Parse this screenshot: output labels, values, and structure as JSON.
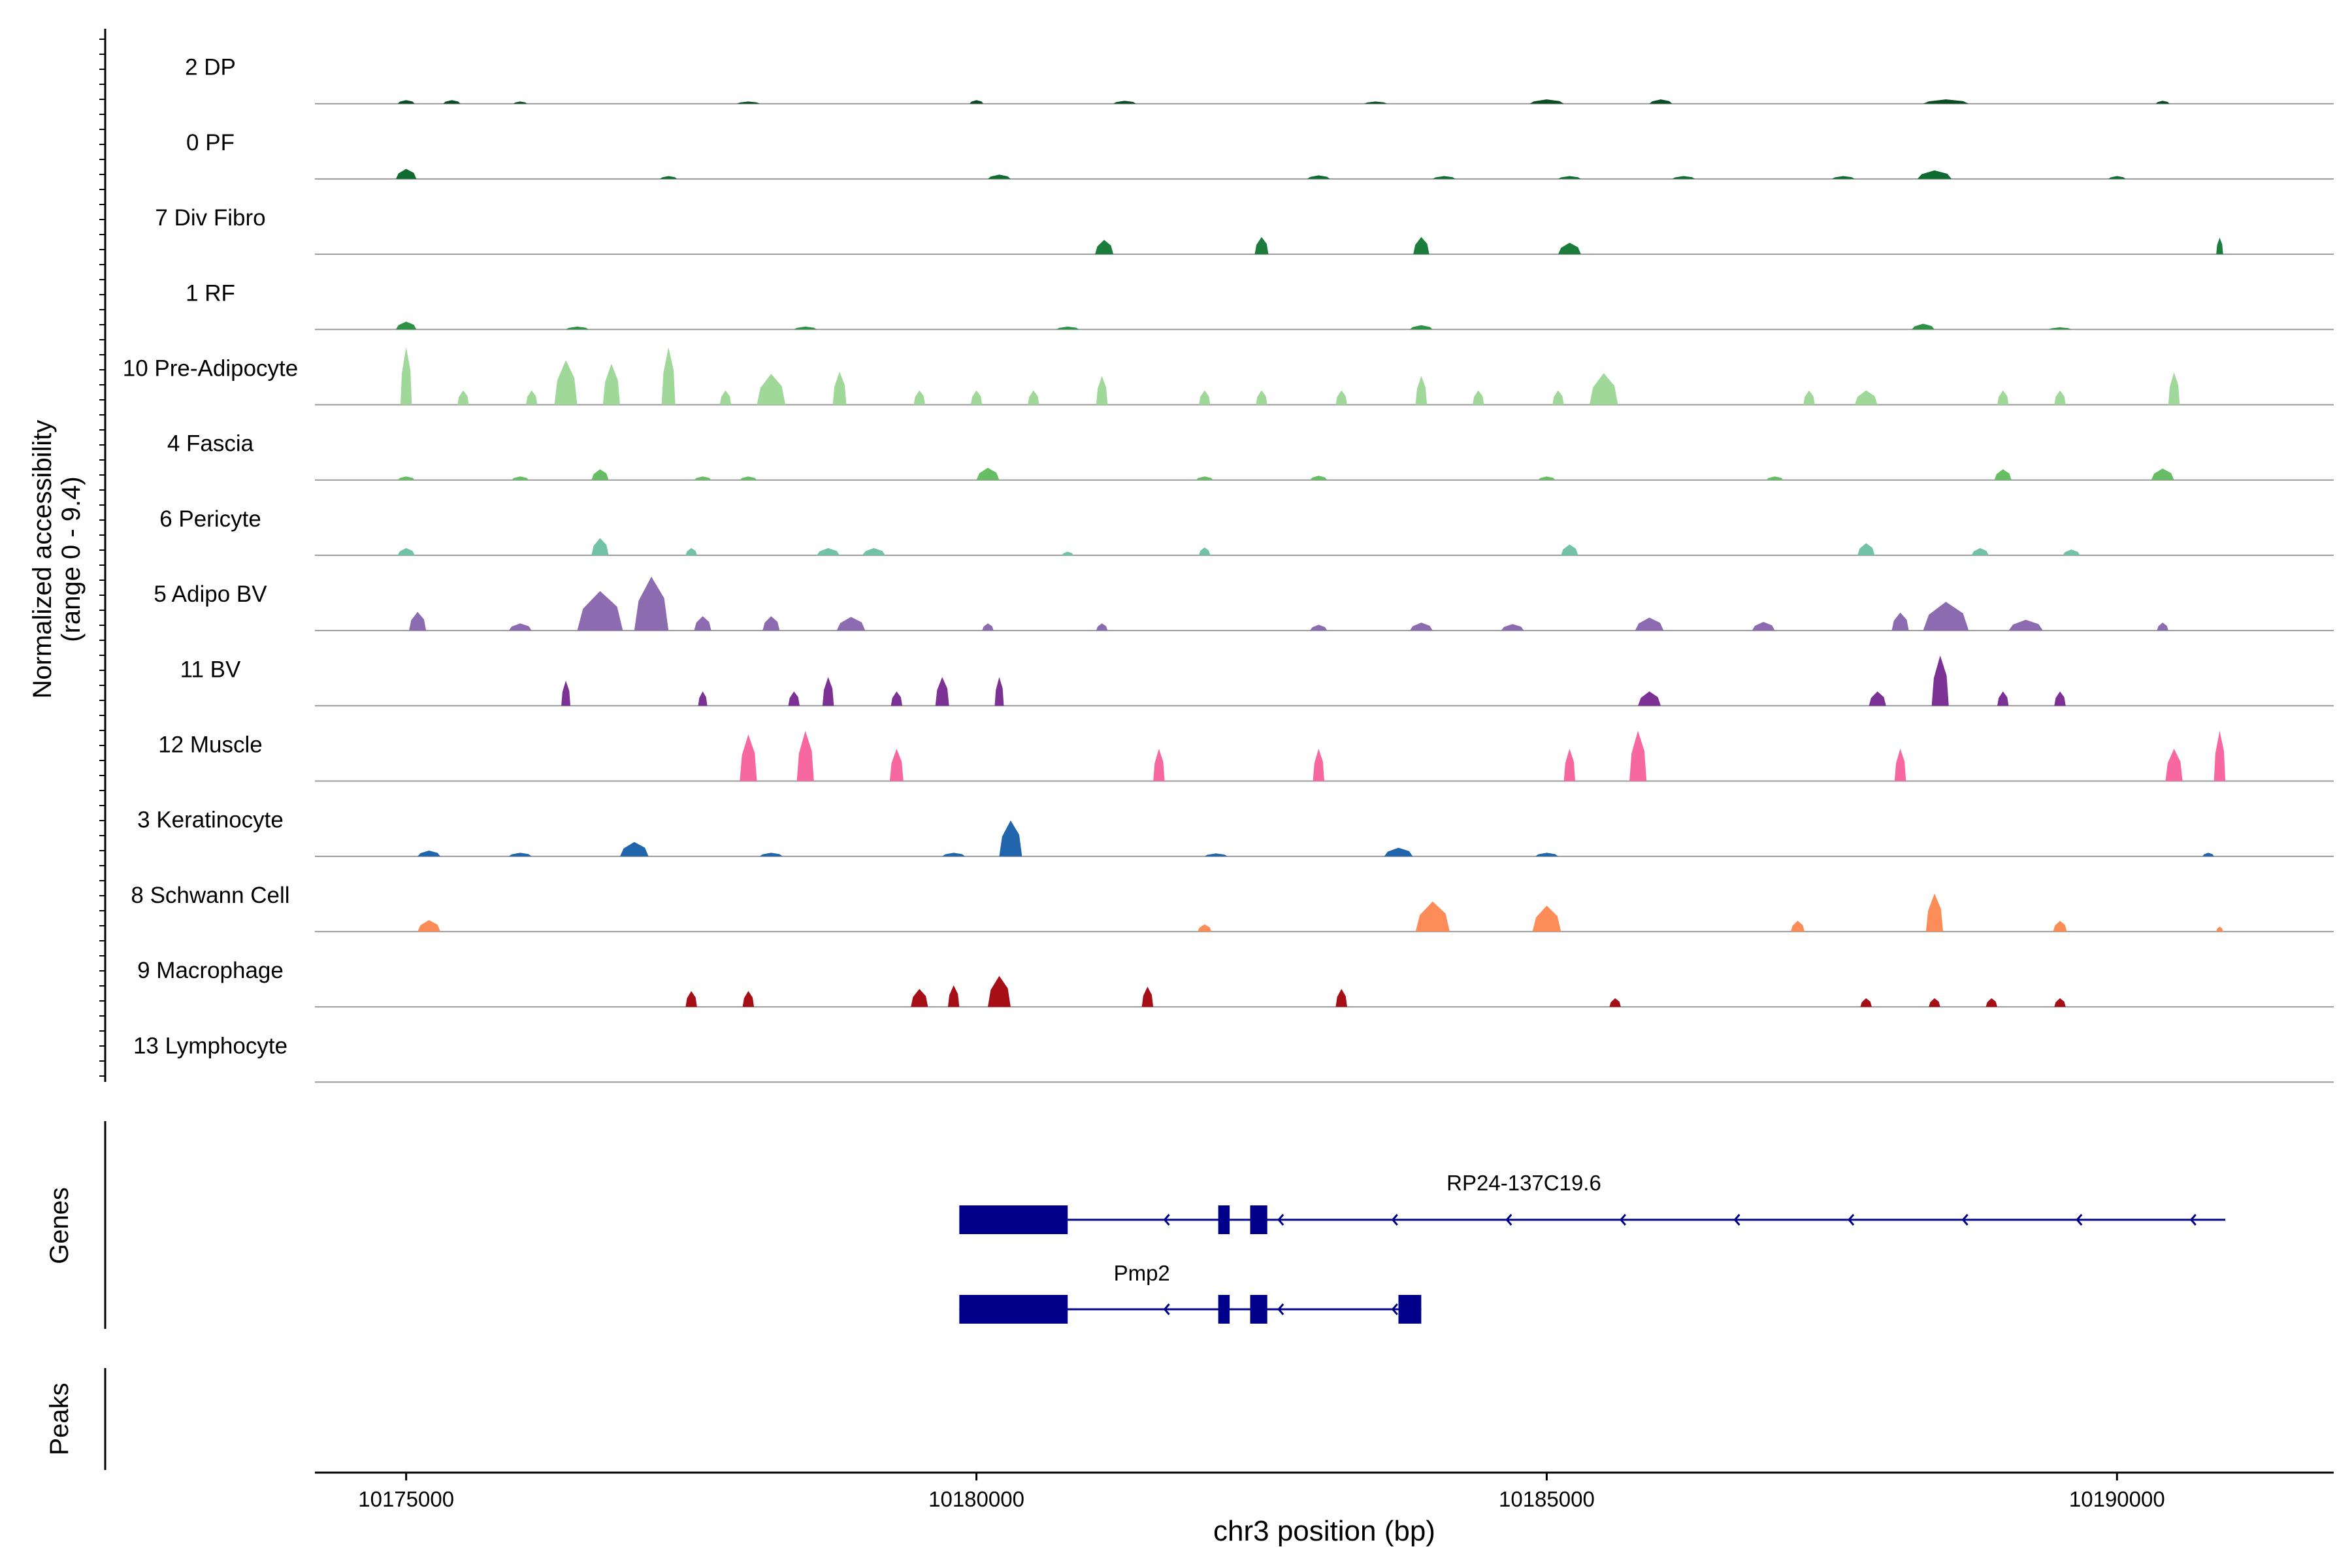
{
  "chart_data": {
    "type": "area",
    "title": "",
    "xlabel": "chr3 position (bp)",
    "ylabel_lines": [
      "Normalized accessibility",
      "(range 0 - 9.4)"
    ],
    "y_range": [
      0,
      9.4
    ],
    "x_range": [
      10174200,
      10191900
    ],
    "x_ticks": [
      10175000,
      10180000,
      10185000,
      10190000
    ],
    "x_tick_labels": [
      "10175000",
      "10180000",
      "10185000",
      "10190000"
    ],
    "tracks": [
      {
        "name": "2 DP",
        "color": "#0a4c23",
        "peaks": [
          [
            10175000,
            150,
            0.5
          ],
          [
            10175400,
            150,
            0.5
          ],
          [
            10176000,
            120,
            0.3
          ],
          [
            10178000,
            200,
            0.3
          ],
          [
            10180000,
            120,
            0.5
          ],
          [
            10181300,
            200,
            0.4
          ],
          [
            10183500,
            200,
            0.3
          ],
          [
            10185000,
            300,
            0.6
          ],
          [
            10186000,
            200,
            0.6
          ],
          [
            10188500,
            400,
            0.6
          ],
          [
            10190400,
            120,
            0.4
          ]
        ]
      },
      {
        "name": "0 PF",
        "color": "#0f6b30",
        "peaks": [
          [
            10175000,
            180,
            1.4
          ],
          [
            10177300,
            150,
            0.4
          ],
          [
            10180200,
            200,
            0.6
          ],
          [
            10183000,
            200,
            0.5
          ],
          [
            10184100,
            200,
            0.4
          ],
          [
            10185200,
            200,
            0.4
          ],
          [
            10186200,
            200,
            0.4
          ],
          [
            10187600,
            200,
            0.4
          ],
          [
            10188400,
            300,
            1.2
          ],
          [
            10190000,
            150,
            0.4
          ]
        ]
      },
      {
        "name": "7 Div Fibro",
        "color": "#1b7c3c",
        "peaks": [
          [
            10181120,
            160,
            2.0
          ],
          [
            10182500,
            120,
            2.4
          ],
          [
            10183900,
            140,
            2.4
          ],
          [
            10185200,
            200,
            1.6
          ],
          [
            10190900,
            60,
            2.3
          ]
        ]
      },
      {
        "name": "1 RF",
        "color": "#2f9145",
        "peaks": [
          [
            10175000,
            180,
            1.1
          ],
          [
            10176500,
            200,
            0.4
          ],
          [
            10178500,
            200,
            0.4
          ],
          [
            10180800,
            200,
            0.4
          ],
          [
            10183900,
            200,
            0.6
          ],
          [
            10188300,
            200,
            0.8
          ],
          [
            10189500,
            200,
            0.3
          ]
        ]
      },
      {
        "name": "10 Pre-Adipocyte",
        "color": "#a0d89a",
        "peaks": [
          [
            10175000,
            100,
            8.0
          ],
          [
            10175500,
            100,
            2.0
          ],
          [
            10176100,
            100,
            2.0
          ],
          [
            10176400,
            200,
            6.2
          ],
          [
            10176800,
            150,
            5.7
          ],
          [
            10177300,
            120,
            8.0
          ],
          [
            10177800,
            100,
            2.0
          ],
          [
            10178200,
            250,
            4.3
          ],
          [
            10178800,
            120,
            4.6
          ],
          [
            10179500,
            100,
            2.0
          ],
          [
            10180000,
            100,
            2.0
          ],
          [
            10180500,
            100,
            2.0
          ],
          [
            10181100,
            100,
            4.0
          ],
          [
            10182000,
            100,
            2.0
          ],
          [
            10182500,
            100,
            2.0
          ],
          [
            10183200,
            100,
            2.0
          ],
          [
            10183900,
            100,
            4.0
          ],
          [
            10184400,
            100,
            2.0
          ],
          [
            10185100,
            100,
            2.0
          ],
          [
            10185500,
            250,
            4.4
          ],
          [
            10187300,
            100,
            2.0
          ],
          [
            10187800,
            200,
            2.0
          ],
          [
            10189000,
            100,
            2.0
          ],
          [
            10189500,
            100,
            2.0
          ],
          [
            10190500,
            100,
            4.5
          ]
        ]
      },
      {
        "name": "4 Fascia",
        "color": "#66bd63",
        "peaks": [
          [
            10175000,
            150,
            0.5
          ],
          [
            10176000,
            150,
            0.5
          ],
          [
            10176700,
            150,
            1.5
          ],
          [
            10177600,
            150,
            0.5
          ],
          [
            10178000,
            150,
            0.5
          ],
          [
            10180100,
            200,
            1.7
          ],
          [
            10182000,
            150,
            0.5
          ],
          [
            10183000,
            150,
            0.6
          ],
          [
            10185000,
            150,
            0.5
          ],
          [
            10187000,
            150,
            0.5
          ],
          [
            10189000,
            150,
            1.5
          ],
          [
            10190400,
            200,
            1.6
          ]
        ]
      },
      {
        "name": "6 Pericyte",
        "color": "#72c2a8",
        "peaks": [
          [
            10175000,
            150,
            1.0
          ],
          [
            10176700,
            150,
            2.4
          ],
          [
            10177500,
            100,
            1.0
          ],
          [
            10178700,
            200,
            1.0
          ],
          [
            10179100,
            200,
            1.0
          ],
          [
            10180800,
            100,
            0.5
          ],
          [
            10182000,
            100,
            1.1
          ],
          [
            10185200,
            150,
            1.5
          ],
          [
            10187800,
            150,
            1.7
          ],
          [
            10188800,
            150,
            1.0
          ],
          [
            10189600,
            150,
            0.8
          ]
        ]
      },
      {
        "name": "5 Adipo BV",
        "color": "#8c6bb1",
        "peaks": [
          [
            10175100,
            150,
            2.6
          ],
          [
            10176000,
            200,
            1.0
          ],
          [
            10176700,
            400,
            5.5
          ],
          [
            10177150,
            300,
            7.5
          ],
          [
            10177600,
            150,
            2.0
          ],
          [
            10178200,
            150,
            2.0
          ],
          [
            10178900,
            250,
            1.9
          ],
          [
            10180100,
            100,
            1.0
          ],
          [
            10181100,
            100,
            1.0
          ],
          [
            10183000,
            150,
            0.8
          ],
          [
            10183900,
            200,
            1.1
          ],
          [
            10184700,
            200,
            0.9
          ],
          [
            10185900,
            250,
            1.8
          ],
          [
            10186900,
            200,
            1.2
          ],
          [
            10188100,
            150,
            2.5
          ],
          [
            10188500,
            400,
            4.0
          ],
          [
            10189200,
            300,
            1.5
          ],
          [
            10190400,
            100,
            1.1
          ]
        ]
      },
      {
        "name": "11 BV",
        "color": "#7b3294",
        "peaks": [
          [
            10176400,
            80,
            3.5
          ],
          [
            10177600,
            80,
            2.0
          ],
          [
            10178400,
            100,
            2.0
          ],
          [
            10178700,
            100,
            4.0
          ],
          [
            10179300,
            100,
            2.0
          ],
          [
            10179700,
            120,
            4.0
          ],
          [
            10180200,
            80,
            4.0
          ],
          [
            10185900,
            200,
            2.0
          ],
          [
            10187900,
            150,
            2.0
          ],
          [
            10188450,
            150,
            7.0
          ],
          [
            10189000,
            100,
            2.0
          ],
          [
            10189500,
            100,
            2.0
          ]
        ]
      },
      {
        "name": "12 Muscle",
        "color": "#f768a1",
        "peaks": [
          [
            10178000,
            150,
            6.5
          ],
          [
            10178500,
            150,
            7.0
          ],
          [
            10179300,
            120,
            4.5
          ],
          [
            10181600,
            100,
            4.5
          ],
          [
            10183000,
            100,
            4.5
          ],
          [
            10185200,
            100,
            4.5
          ],
          [
            10185800,
            150,
            7.0
          ],
          [
            10188100,
            100,
            4.5
          ],
          [
            10190500,
            150,
            4.5
          ],
          [
            10190900,
            100,
            7.0
          ]
        ]
      },
      {
        "name": "3 Keratinocyte",
        "color": "#2166ac",
        "peaks": [
          [
            10175200,
            200,
            0.8
          ],
          [
            10176000,
            200,
            0.5
          ],
          [
            10177000,
            250,
            2.0
          ],
          [
            10178200,
            200,
            0.5
          ],
          [
            10179800,
            200,
            0.5
          ],
          [
            10180300,
            200,
            5.0
          ],
          [
            10182100,
            200,
            0.4
          ],
          [
            10183700,
            250,
            1.2
          ],
          [
            10185000,
            200,
            0.5
          ],
          [
            10190800,
            100,
            0.5
          ]
        ]
      },
      {
        "name": "8 Schwann Cell",
        "color": "#fc8d59",
        "peaks": [
          [
            10175200,
            200,
            1.6
          ],
          [
            10182000,
            120,
            1.0
          ],
          [
            10184000,
            300,
            4.2
          ],
          [
            10185000,
            250,
            3.6
          ],
          [
            10187200,
            120,
            1.5
          ],
          [
            10188400,
            150,
            5.3
          ],
          [
            10189500,
            120,
            1.5
          ],
          [
            10190900,
            60,
            0.7
          ]
        ]
      },
      {
        "name": "9 Macrophage",
        "color": "#a50f15",
        "peaks": [
          [
            10177500,
            100,
            2.2
          ],
          [
            10178000,
            100,
            2.2
          ],
          [
            10179500,
            150,
            2.5
          ],
          [
            10179800,
            100,
            3.0
          ],
          [
            10180200,
            200,
            4.3
          ],
          [
            10181500,
            100,
            2.8
          ],
          [
            10183200,
            100,
            2.5
          ],
          [
            10185600,
            100,
            1.2
          ],
          [
            10187800,
            100,
            1.2
          ],
          [
            10188400,
            100,
            1.2
          ],
          [
            10188900,
            100,
            1.2
          ],
          [
            10189500,
            100,
            1.2
          ]
        ]
      },
      {
        "name": "13 Lymphocyte",
        "color": "#808080",
        "peaks": []
      }
    ],
    "gene_track_label": "Genes",
    "peaks_track_label": "Peaks",
    "gene_color": "#00008b",
    "genes": [
      {
        "name": "RP24-137C19.6",
        "strand": "-",
        "start": 10179850,
        "end": 10190950,
        "exons": [
          [
            10179850,
            10180800
          ],
          [
            10182120,
            10182220
          ],
          [
            10182400,
            10182550
          ]
        ]
      },
      {
        "name": "Pmp2",
        "strand": "-",
        "start": 10179850,
        "end": 10183900,
        "exons": [
          [
            10179850,
            10180800
          ],
          [
            10182120,
            10182220
          ],
          [
            10182400,
            10182550
          ],
          [
            10183700,
            10183900
          ]
        ]
      }
    ]
  }
}
